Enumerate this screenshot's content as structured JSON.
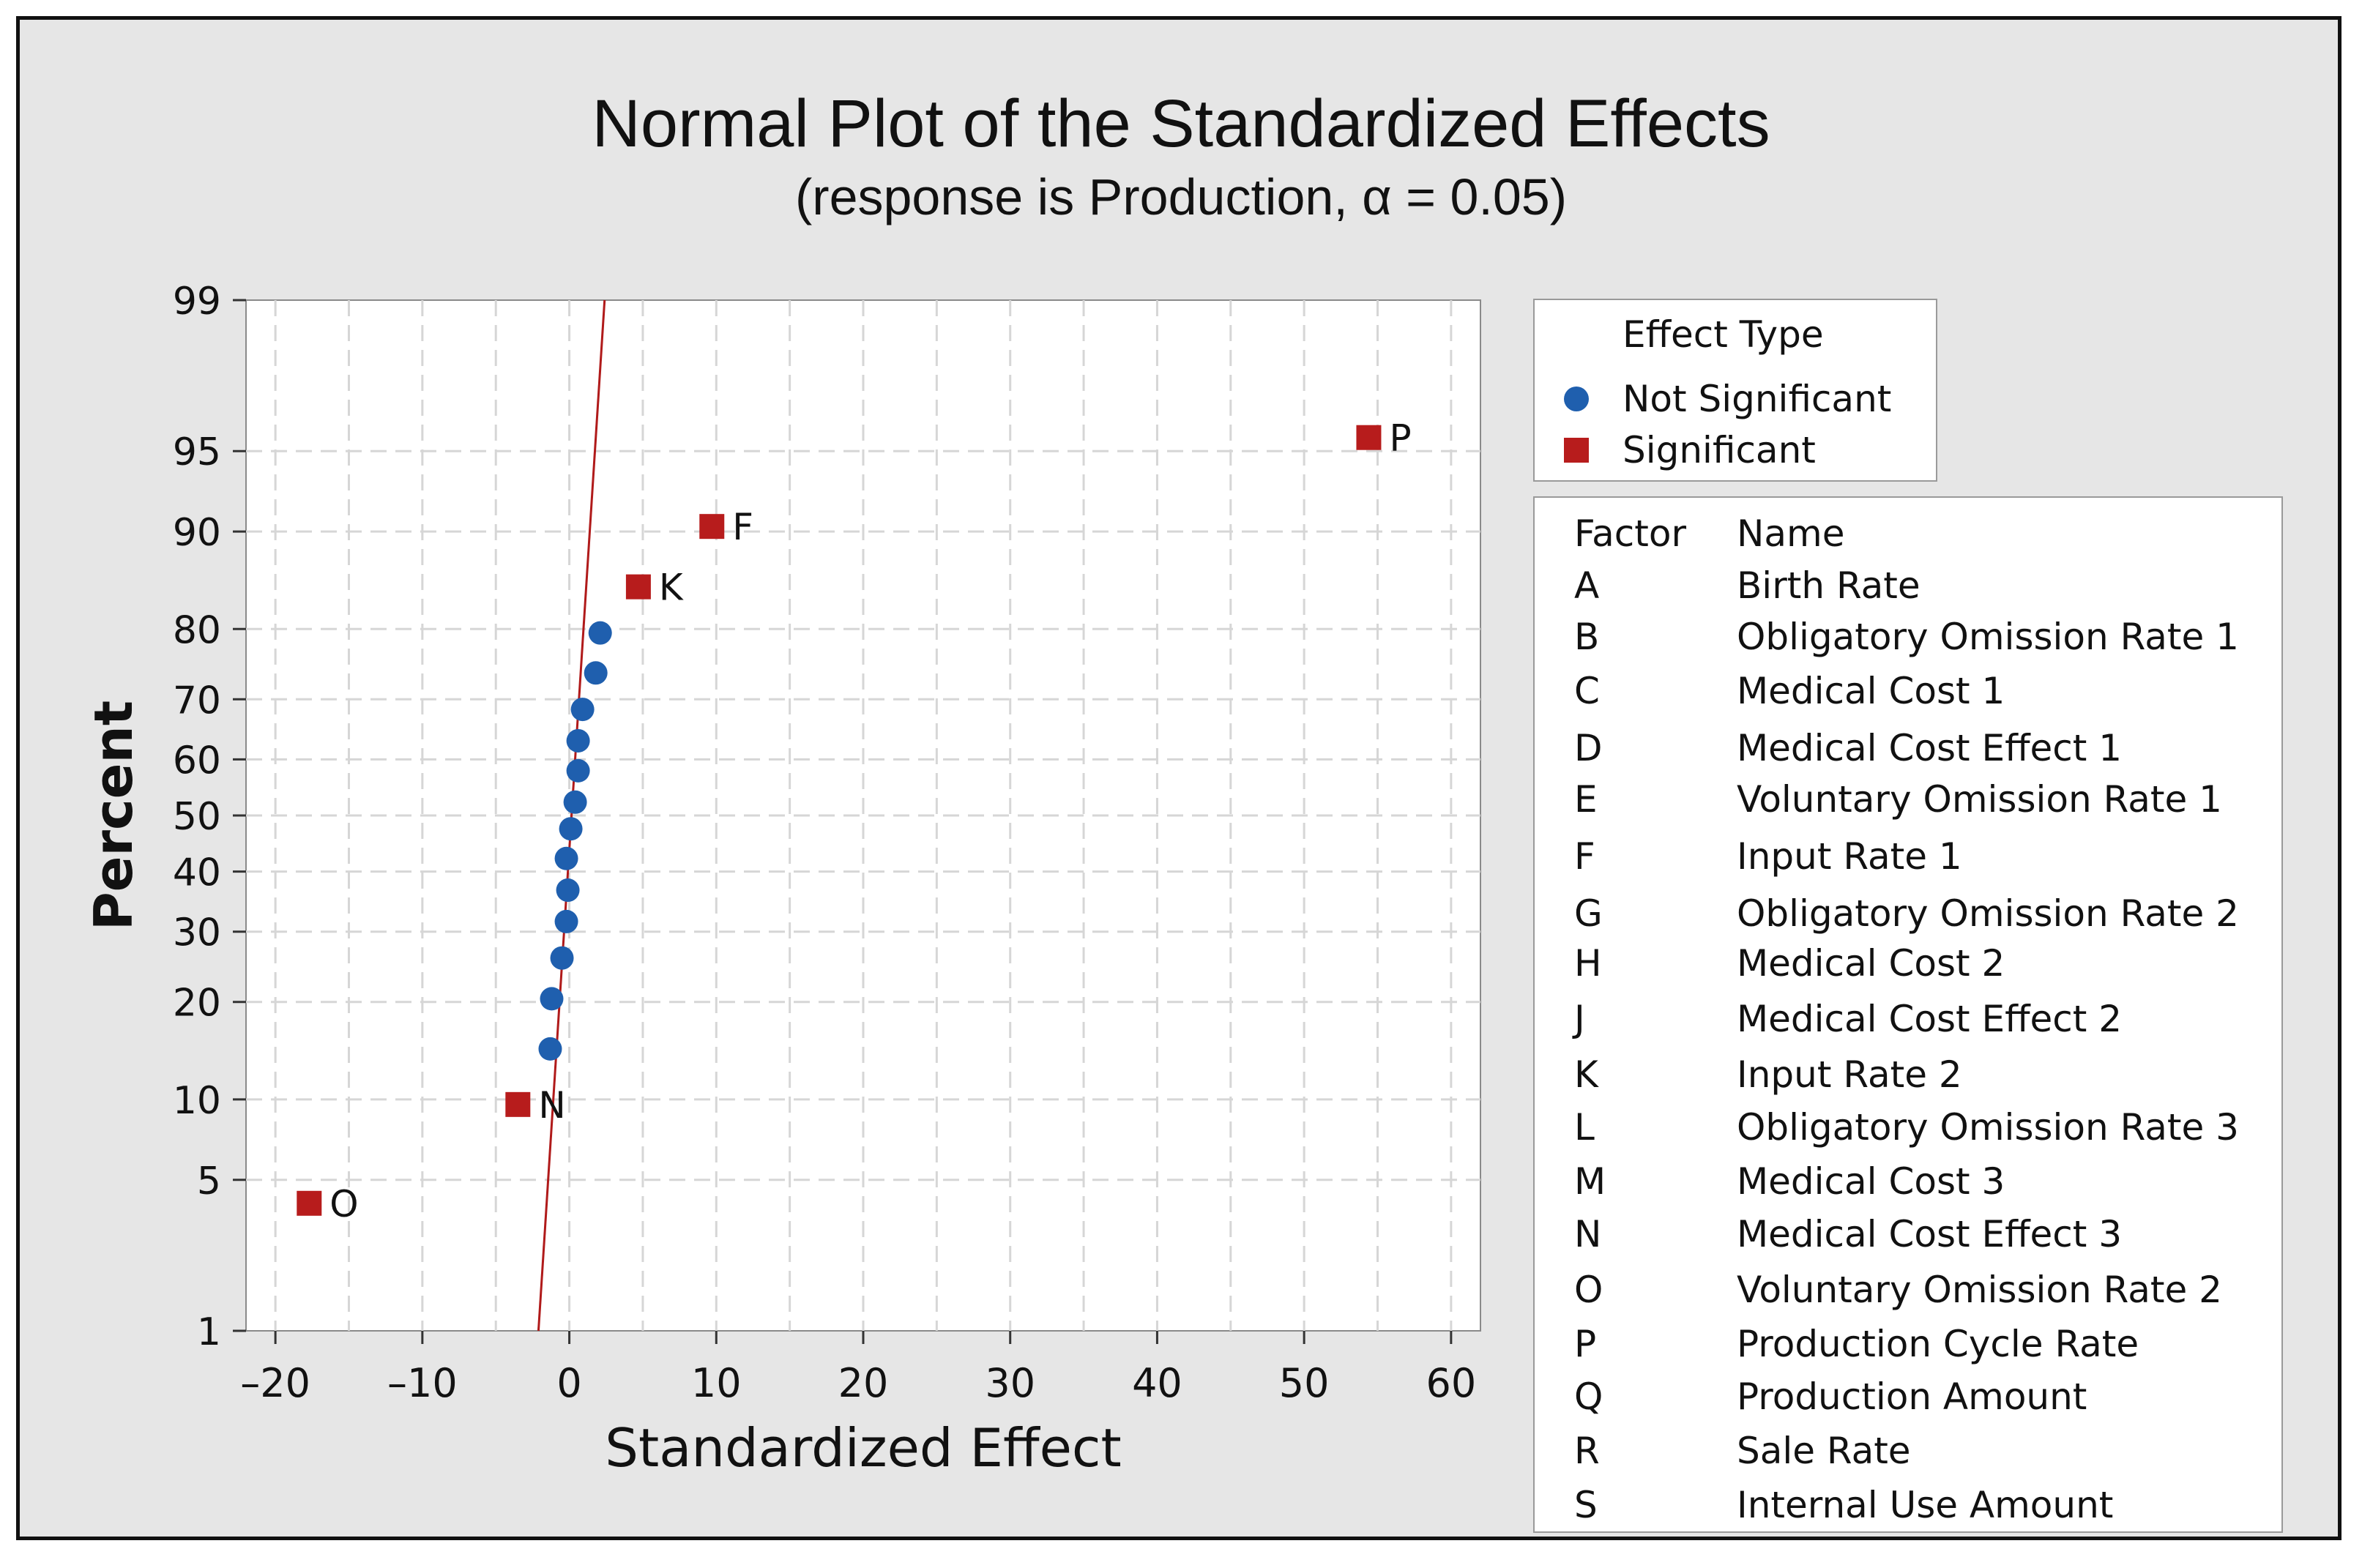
{
  "chart_data": {
    "type": "scatter",
    "title": "Normal Plot of the Standardized Effects",
    "subtitle": "(response is Production, α = 0.05)",
    "xlabel": "Standardized Effect",
    "ylabel": "Percent",
    "xlim": [
      -22,
      62
    ],
    "ylim": [
      1,
      99
    ],
    "xticks": [
      -20,
      -10,
      0,
      10,
      20,
      30,
      40,
      50,
      60
    ],
    "xtick_labels": [
      "–20",
      "–10",
      "0",
      "10",
      "20",
      "30",
      "40",
      "50",
      "60"
    ],
    "yticks": [
      1,
      5,
      10,
      20,
      30,
      40,
      50,
      60,
      70,
      80,
      90,
      95,
      99
    ],
    "grid": true,
    "reference_line": {
      "x_at_p1": -2.1,
      "x_at_p99": 2.4
    },
    "series": [
      {
        "name": "Not Significant",
        "marker": "circle",
        "color": "#1f5fae",
        "points": [
          {
            "x": -1.3,
            "y": 14.6
          },
          {
            "x": -1.2,
            "y": 20.4
          },
          {
            "x": -0.5,
            "y": 26.0
          },
          {
            "x": -0.2,
            "y": 31.6
          },
          {
            "x": -0.1,
            "y": 36.8
          },
          {
            "x": -0.2,
            "y": 42.3
          },
          {
            "x": 0.1,
            "y": 47.6
          },
          {
            "x": 0.4,
            "y": 52.4
          },
          {
            "x": 0.6,
            "y": 58.0
          },
          {
            "x": 0.6,
            "y": 63.2
          },
          {
            "x": 0.9,
            "y": 68.4
          },
          {
            "x": 1.8,
            "y": 74.0
          },
          {
            "x": 2.1,
            "y": 79.5
          }
        ]
      },
      {
        "name": "Significant",
        "marker": "square",
        "color": "#b71c1c",
        "points": [
          {
            "x": -17.7,
            "y": 4.0,
            "label": "O"
          },
          {
            "x": -3.5,
            "y": 9.6,
            "label": "N"
          },
          {
            "x": 4.7,
            "y": 84.9,
            "label": "K"
          },
          {
            "x": 9.7,
            "y": 90.4,
            "label": "F"
          },
          {
            "x": 54.4,
            "y": 95.6,
            "label": "P"
          }
        ]
      }
    ],
    "legend": {
      "title": "Effect Type",
      "entries": [
        {
          "label": "Not Significant",
          "marker": "circle",
          "color": "#1f5fae"
        },
        {
          "label": "Significant",
          "marker": "square",
          "color": "#b71c1c"
        }
      ]
    },
    "factor_table": {
      "header_factor": "Factor",
      "header_name": "Name",
      "rows": [
        {
          "factor": "A",
          "name": "Birth Rate"
        },
        {
          "factor": "B",
          "name": "Obligatory Omission Rate 1"
        },
        {
          "factor": "C",
          "name": "Medical Cost 1"
        },
        {
          "factor": "D",
          "name": "Medical Cost Effect 1"
        },
        {
          "factor": "E",
          "name": "Voluntary Omission Rate 1"
        },
        {
          "factor": "F",
          "name": "Input Rate 1"
        },
        {
          "factor": "G",
          "name": "Obligatory Omission Rate 2"
        },
        {
          "factor": "H",
          "name": "Medical Cost 2"
        },
        {
          "factor": "J",
          "name": "Medical Cost Effect 2"
        },
        {
          "factor": "K",
          "name": "Input Rate 2"
        },
        {
          "factor": "L",
          "name": "Obligatory Omission Rate 3"
        },
        {
          "factor": "M",
          "name": "Medical Cost 3"
        },
        {
          "factor": "N",
          "name": "Medical Cost Effect 3"
        },
        {
          "factor": "O",
          "name": "Voluntary Omission Rate 2"
        },
        {
          "factor": "P",
          "name": "Production Cycle Rate"
        },
        {
          "factor": "Q",
          "name": "Production Amount"
        },
        {
          "factor": "R",
          "name": "Sale Rate"
        },
        {
          "factor": "S",
          "name": "Internal Use Amount"
        }
      ]
    }
  }
}
